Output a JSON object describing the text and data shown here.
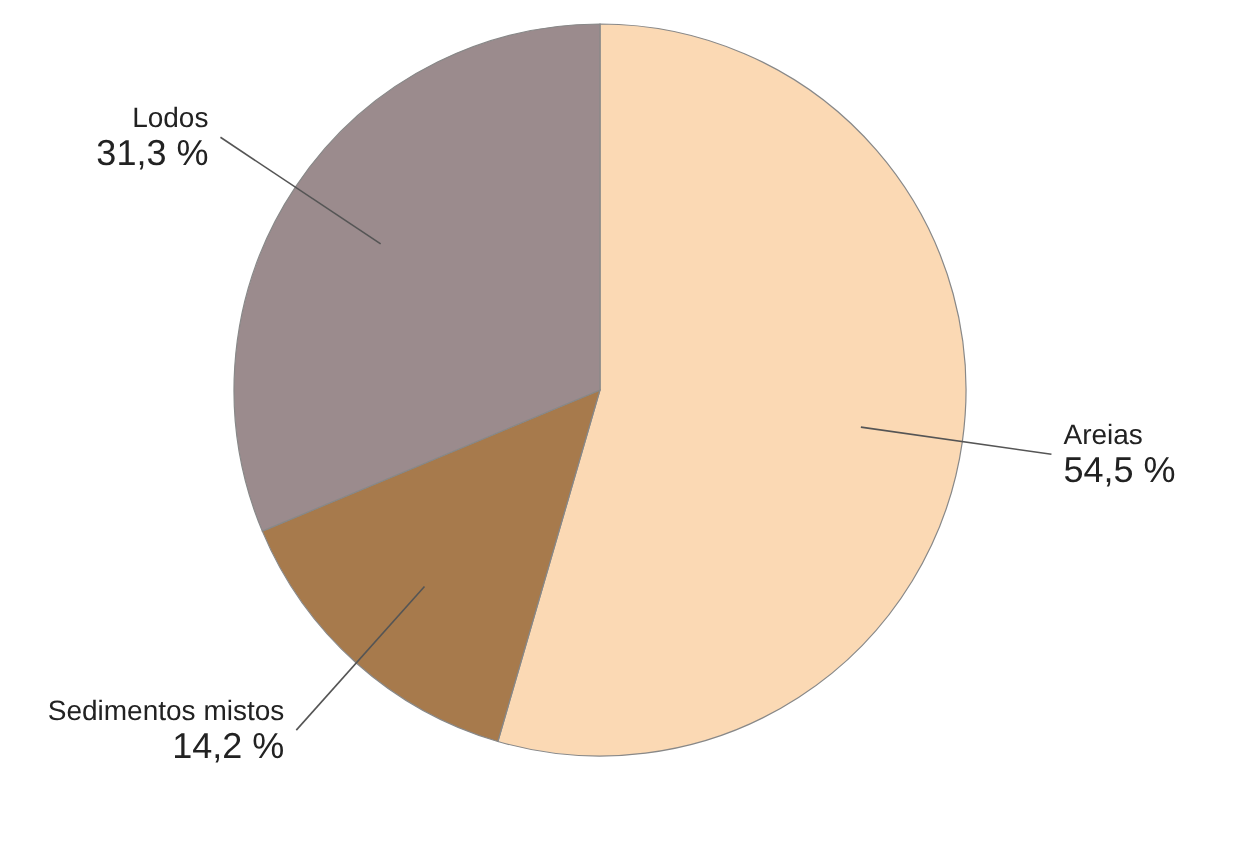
{
  "chart_data": {
    "type": "pie",
    "categories": [
      "Areias",
      "Sedimentos mistos",
      "Lodos"
    ],
    "values": [
      54.5,
      14.2,
      31.3
    ],
    "colors": [
      "#fbd9b4",
      "#a77a4c",
      "#9b8b8d"
    ],
    "value_labels": [
      "54,5 %",
      "14,2 %",
      "31,3 %"
    ]
  }
}
